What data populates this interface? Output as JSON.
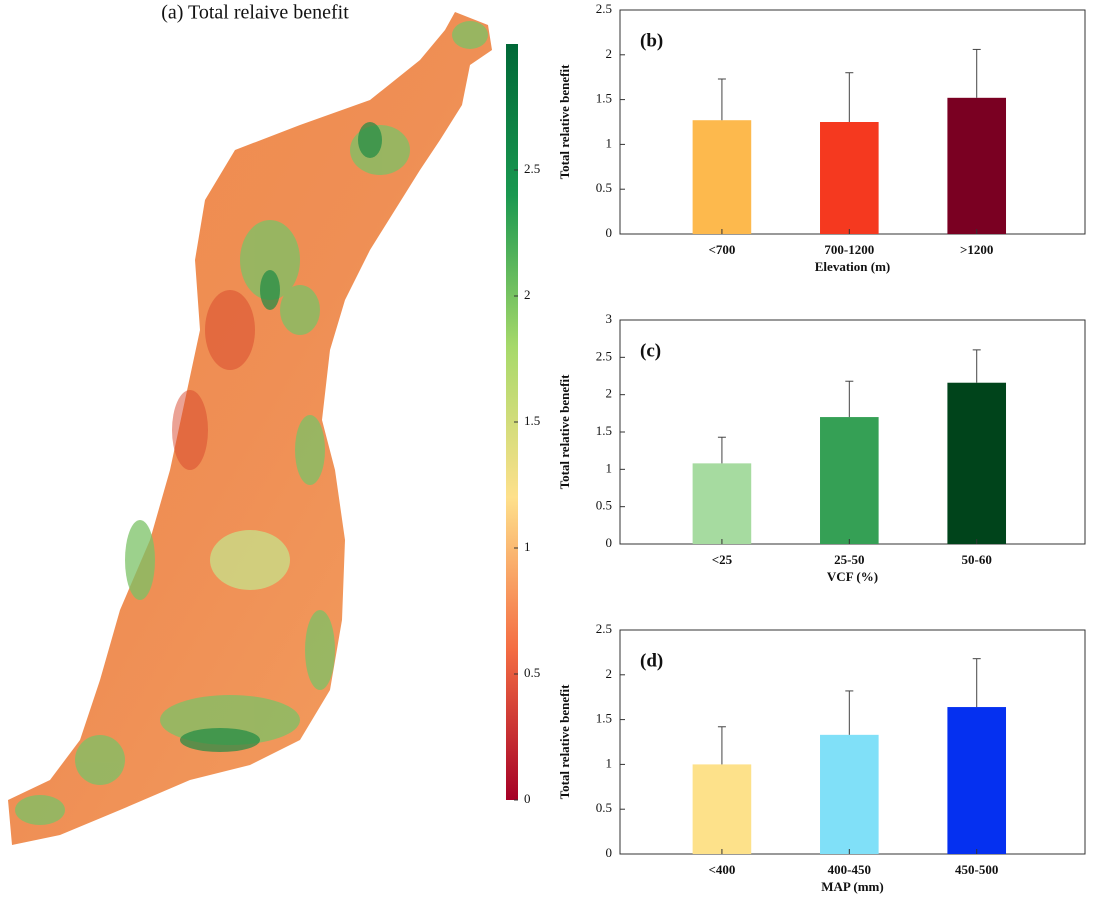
{
  "chart_data": [
    {
      "type": "map",
      "title": "(a) Total relaive benefit",
      "colorbar": {
        "lim": [
          0,
          3
        ],
        "ticks": [
          0,
          0.5,
          1,
          1.5,
          2,
          2.5
        ],
        "colors": [
          "#a50026",
          "#f46d43",
          "#fee08b",
          "#a6d96a",
          "#1a9850",
          "#006837"
        ]
      }
    },
    {
      "type": "bar",
      "panel": "(b)",
      "xlabel": "Elevation (m)",
      "ylabel": "Total relative benefit",
      "categories": [
        "<700",
        "700-1200",
        ">1200"
      ],
      "values": [
        1.27,
        1.25,
        1.52
      ],
      "errors": [
        0.46,
        0.55,
        0.54
      ],
      "colors": [
        "#fdb94d",
        "#f5391f",
        "#7a0022"
      ],
      "ylim": [
        0,
        2.5
      ],
      "yticks": [
        0,
        0.5,
        1,
        1.5,
        2,
        2.5
      ]
    },
    {
      "type": "bar",
      "panel": "(c)",
      "xlabel": "VCF (%)",
      "ylabel": "Total relative benefit",
      "categories": [
        "<25",
        "25-50",
        "50-60"
      ],
      "values": [
        1.08,
        1.7,
        2.16
      ],
      "errors": [
        0.35,
        0.48,
        0.44
      ],
      "colors": [
        "#a6dba0",
        "#35a055",
        "#00441b"
      ],
      "ylim": [
        0,
        3
      ],
      "yticks": [
        0,
        0.5,
        1,
        1.5,
        2,
        2.5,
        3
      ]
    },
    {
      "type": "bar",
      "panel": "(d)",
      "xlabel": "MAP (mm)",
      "ylabel": "Total relative benefit",
      "categories": [
        "<400",
        "400-450",
        "450-500"
      ],
      "values": [
        1.0,
        1.33,
        1.64
      ],
      "errors": [
        0.42,
        0.49,
        0.54
      ],
      "colors": [
        "#fde18a",
        "#80e0f8",
        "#0530f0"
      ],
      "ylim": [
        0,
        2.5
      ],
      "yticks": [
        0,
        0.5,
        1,
        1.5,
        2,
        2.5
      ]
    }
  ]
}
